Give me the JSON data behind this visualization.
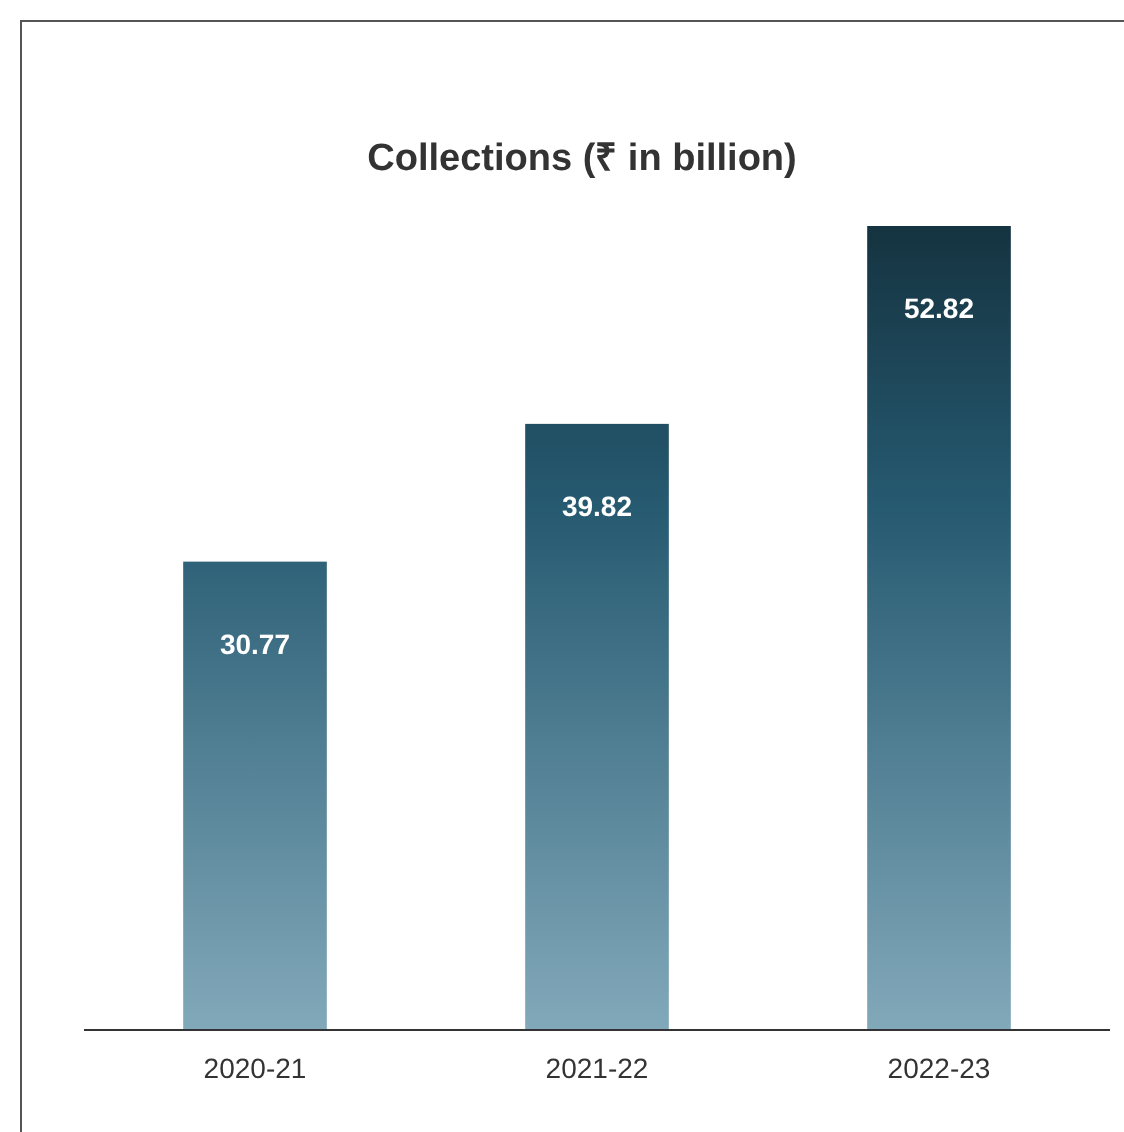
{
  "chart_data": {
    "type": "bar",
    "title": "Collections (₹ in billion)",
    "categories": [
      "2020-21",
      "2021-22",
      "2022-23"
    ],
    "values": [
      30.77,
      39.82,
      52.82
    ],
    "color": "#2f6f8c",
    "data_labels": true
  }
}
